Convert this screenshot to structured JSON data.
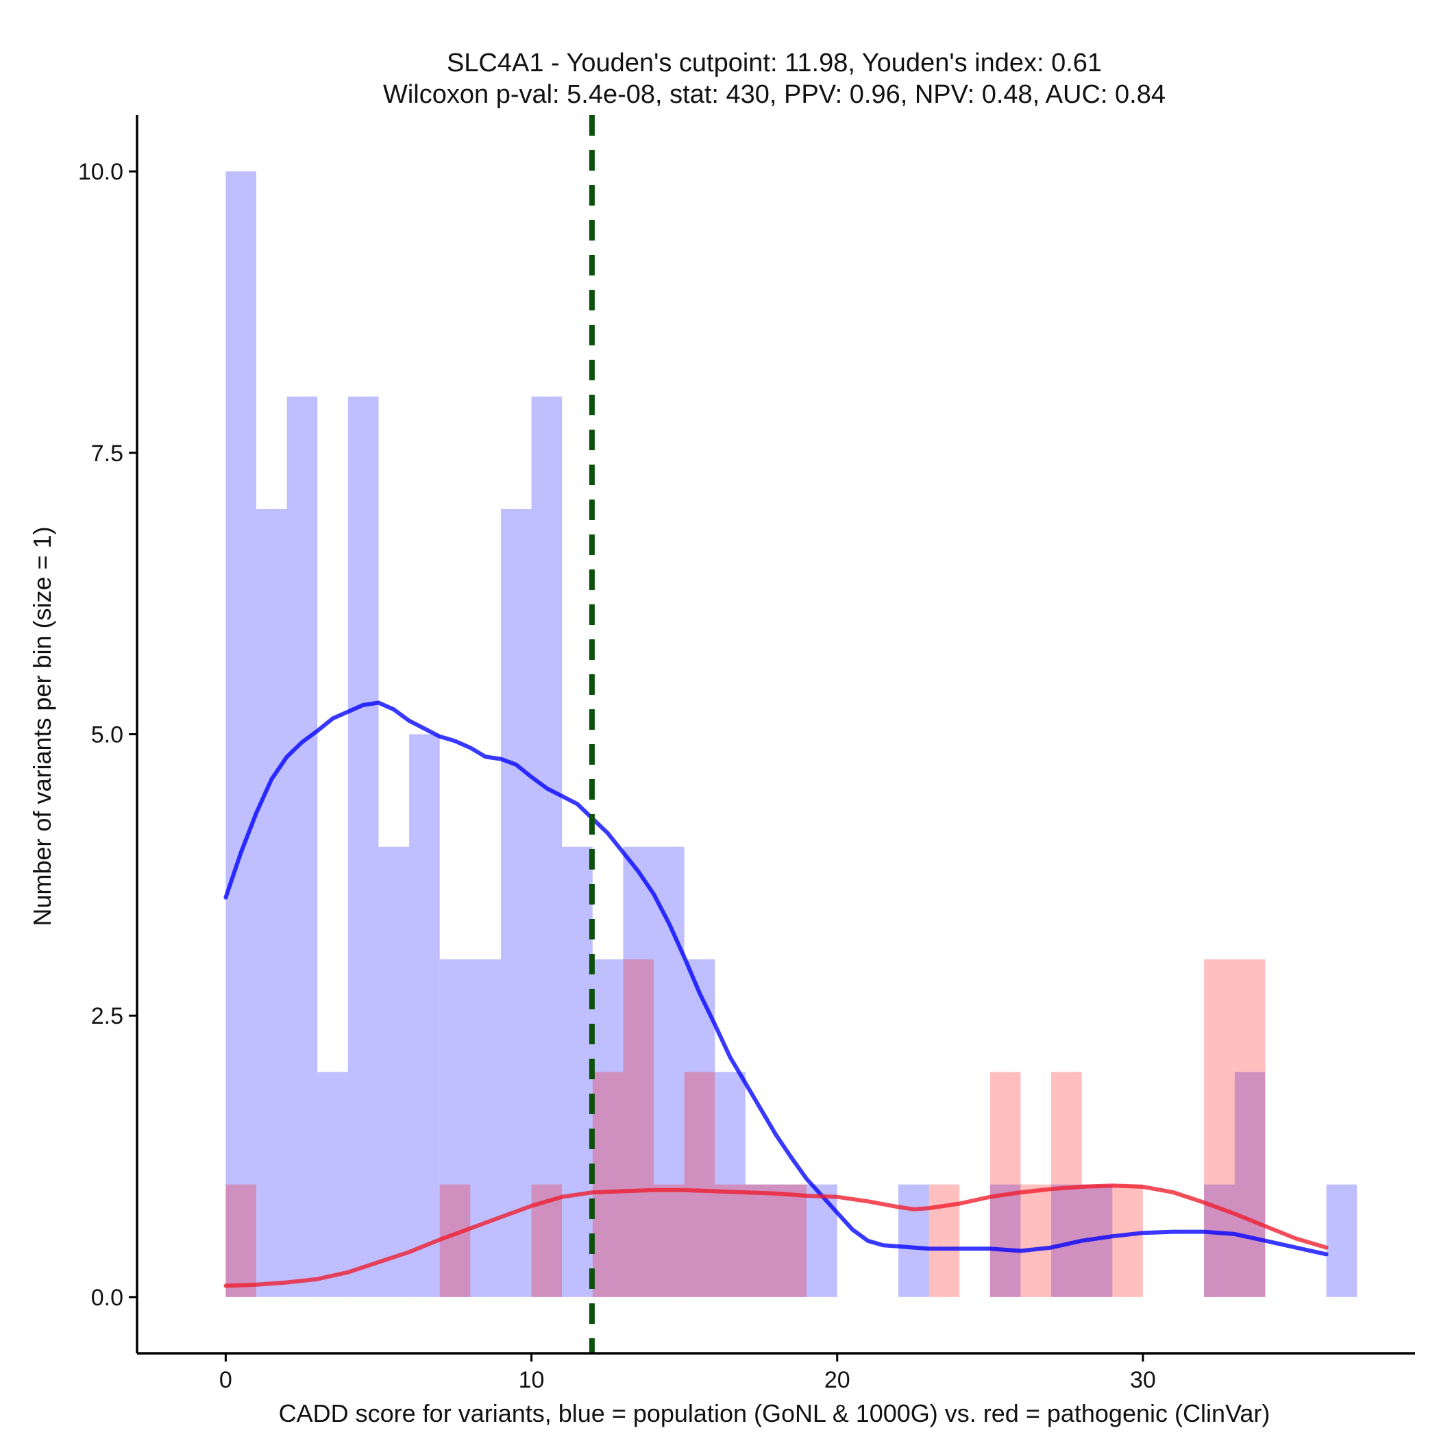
{
  "chart_data": {
    "type": "histogram",
    "title_line1": "SLC4A1 - Youden's cutpoint: 11.98, Youden's index: 0.61",
    "title_line2": "Wilcoxon p-val: 5.4e-08, stat: 430, PPV: 0.96, NPV: 0.48, AUC: 0.84",
    "xlabel": "CADD score for variants, blue = population (GoNL & 1000G) vs. red = pathogenic (ClinVar)",
    "ylabel": "Number of variants per bin (size = 1)",
    "xlim": [
      -2.9,
      38.9
    ],
    "ylim": [
      -0.5,
      10.5
    ],
    "x_ticks": [
      0,
      10,
      20,
      30
    ],
    "x_tick_labels": [
      "0",
      "10",
      "20",
      "30"
    ],
    "y_ticks": [
      0,
      2.5,
      5,
      7.5,
      10
    ],
    "y_tick_labels": [
      "0.0",
      "2.5",
      "5.0",
      "7.5",
      "10.0"
    ],
    "bin_width": 1,
    "cutpoint": 11.98,
    "series": [
      {
        "name": "population (GoNL & 1000G)",
        "color": "#0000ff",
        "fill": "rgba(0,0,255,0.25)",
        "bins": [
          {
            "start": 0,
            "count": 10
          },
          {
            "start": 1,
            "count": 7
          },
          {
            "start": 2,
            "count": 8
          },
          {
            "start": 3,
            "count": 2
          },
          {
            "start": 4,
            "count": 8
          },
          {
            "start": 5,
            "count": 4
          },
          {
            "start": 6,
            "count": 5
          },
          {
            "start": 7,
            "count": 3
          },
          {
            "start": 8,
            "count": 3
          },
          {
            "start": 9,
            "count": 7
          },
          {
            "start": 10,
            "count": 8
          },
          {
            "start": 11,
            "count": 4
          },
          {
            "start": 12,
            "count": 3
          },
          {
            "start": 13,
            "count": 4
          },
          {
            "start": 14,
            "count": 4
          },
          {
            "start": 15,
            "count": 3
          },
          {
            "start": 16,
            "count": 2
          },
          {
            "start": 17,
            "count": 1
          },
          {
            "start": 18,
            "count": 1
          },
          {
            "start": 19,
            "count": 1
          },
          {
            "start": 22,
            "count": 1
          },
          {
            "start": 25,
            "count": 1
          },
          {
            "start": 27,
            "count": 1
          },
          {
            "start": 28,
            "count": 1
          },
          {
            "start": 32,
            "count": 1
          },
          {
            "start": 33,
            "count": 2
          },
          {
            "start": 36,
            "count": 1
          }
        ],
        "density_x": [
          0,
          0.5,
          1,
          1.5,
          2,
          2.5,
          3,
          3.5,
          4,
          4.5,
          5,
          5.5,
          6,
          6.5,
          7,
          7.5,
          8,
          8.5,
          9,
          9.5,
          10,
          10.5,
          11,
          11.5,
          12,
          12.5,
          13,
          13.5,
          14,
          14.5,
          15,
          15.5,
          16,
          16.5,
          17,
          17.5,
          18,
          18.5,
          19,
          19.5,
          20,
          20.5,
          21,
          21.5,
          22,
          22.5,
          23,
          24,
          25,
          26,
          27,
          28,
          29,
          30,
          31,
          32,
          33,
          34,
          35,
          36
        ],
        "density_y": [
          3.55,
          3.95,
          4.3,
          4.6,
          4.8,
          4.93,
          5.03,
          5.14,
          5.2,
          5.26,
          5.28,
          5.22,
          5.12,
          5.05,
          4.98,
          4.94,
          4.88,
          4.8,
          4.78,
          4.73,
          4.62,
          4.52,
          4.45,
          4.38,
          4.25,
          4.12,
          3.95,
          3.78,
          3.58,
          3.32,
          3.02,
          2.7,
          2.42,
          2.13,
          1.9,
          1.67,
          1.44,
          1.24,
          1.05,
          0.9,
          0.75,
          0.6,
          0.5,
          0.46,
          0.45,
          0.44,
          0.43,
          0.43,
          0.43,
          0.41,
          0.44,
          0.5,
          0.54,
          0.57,
          0.58,
          0.58,
          0.56,
          0.5,
          0.44,
          0.38
        ]
      },
      {
        "name": "pathogenic (ClinVar)",
        "color": "#ee1c2b",
        "fill": "rgba(255,0,0,0.25)",
        "bins": [
          {
            "start": 0,
            "count": 1
          },
          {
            "start": 7,
            "count": 1
          },
          {
            "start": 10,
            "count": 1
          },
          {
            "start": 12,
            "count": 2
          },
          {
            "start": 13,
            "count": 3
          },
          {
            "start": 14,
            "count": 1
          },
          {
            "start": 15,
            "count": 2
          },
          {
            "start": 16,
            "count": 1
          },
          {
            "start": 17,
            "count": 1
          },
          {
            "start": 18,
            "count": 1
          },
          {
            "start": 23,
            "count": 1
          },
          {
            "start": 25,
            "count": 2
          },
          {
            "start": 26,
            "count": 1
          },
          {
            "start": 27,
            "count": 2
          },
          {
            "start": 28,
            "count": 1
          },
          {
            "start": 29,
            "count": 1
          },
          {
            "start": 32,
            "count": 3
          },
          {
            "start": 33,
            "count": 3
          }
        ],
        "density_x": [
          0,
          1,
          2,
          3,
          4,
          5,
          6,
          7,
          8,
          9,
          10,
          11,
          12,
          13,
          14,
          15,
          16,
          17,
          18,
          19,
          20,
          21,
          22,
          22.5,
          23,
          24,
          25,
          26,
          27,
          28,
          29,
          30,
          31,
          32,
          33,
          34,
          35,
          36
        ],
        "density_y": [
          0.1,
          0.11,
          0.13,
          0.16,
          0.22,
          0.31,
          0.4,
          0.51,
          0.61,
          0.71,
          0.81,
          0.89,
          0.93,
          0.94,
          0.95,
          0.95,
          0.94,
          0.93,
          0.92,
          0.9,
          0.89,
          0.85,
          0.8,
          0.78,
          0.79,
          0.83,
          0.89,
          0.93,
          0.96,
          0.98,
          0.99,
          0.98,
          0.93,
          0.84,
          0.74,
          0.63,
          0.52,
          0.44
        ]
      }
    ]
  }
}
